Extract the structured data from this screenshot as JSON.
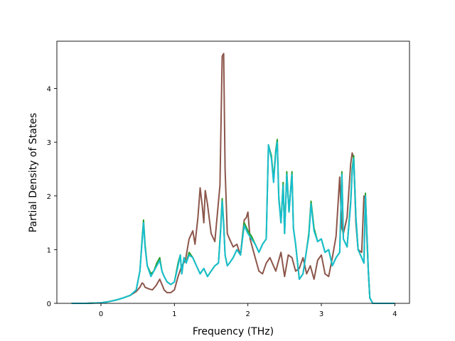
{
  "chart_data": {
    "type": "line",
    "title": "",
    "xlabel": "Frequency (THz)",
    "ylabel": "Partial Density of States",
    "xlim": [
      -0.6,
      4.2
    ],
    "ylim": [
      0,
      4.88
    ],
    "xticks": [
      0,
      1,
      2,
      3,
      4
    ],
    "xtick_labels": [
      "0",
      "1",
      "2",
      "3",
      "4"
    ],
    "yticks": [
      0,
      1,
      2,
      3,
      4
    ],
    "ytick_labels": [
      "0",
      "1",
      "2",
      "3",
      "4"
    ],
    "grid": false,
    "legend": "none",
    "series": [
      {
        "color": "#8c564b",
        "x": [
          -0.4,
          -0.2,
          0.0,
          0.1,
          0.2,
          0.3,
          0.4,
          0.48,
          0.53,
          0.56,
          0.58,
          0.6,
          0.65,
          0.7,
          0.75,
          0.8,
          0.83,
          0.86,
          0.9,
          0.95,
          1.0,
          1.05,
          1.1,
          1.15,
          1.2,
          1.25,
          1.28,
          1.32,
          1.35,
          1.38,
          1.4,
          1.42,
          1.45,
          1.5,
          1.55,
          1.58,
          1.62,
          1.65,
          1.67,
          1.69,
          1.72,
          1.75,
          1.8,
          1.85,
          1.9,
          1.95,
          1.98,
          2.0,
          2.03,
          2.08,
          2.15,
          2.2,
          2.25,
          2.3,
          2.38,
          2.45,
          2.5,
          2.55,
          2.6,
          2.65,
          2.7,
          2.75,
          2.8,
          2.85,
          2.9,
          2.95,
          3.0,
          3.05,
          3.1,
          3.15,
          3.2,
          3.25,
          3.28,
          3.3,
          3.35,
          3.4,
          3.42,
          3.44,
          3.47,
          3.5,
          3.55,
          3.58,
          3.6,
          3.62,
          3.64,
          3.66,
          3.7,
          3.8,
          4.0
        ],
        "y": [
          0.0,
          0.0,
          0.01,
          0.03,
          0.06,
          0.1,
          0.15,
          0.22,
          0.3,
          0.38,
          0.36,
          0.3,
          0.27,
          0.25,
          0.33,
          0.45,
          0.35,
          0.25,
          0.2,
          0.2,
          0.25,
          0.5,
          0.7,
          0.8,
          1.2,
          1.35,
          1.1,
          1.6,
          2.15,
          1.8,
          1.5,
          2.1,
          1.85,
          1.3,
          1.15,
          1.6,
          2.2,
          4.6,
          4.65,
          2.5,
          1.3,
          1.2,
          1.05,
          1.1,
          0.9,
          1.55,
          1.6,
          1.7,
          1.2,
          0.95,
          0.6,
          0.55,
          0.75,
          0.85,
          0.6,
          0.95,
          0.5,
          0.9,
          0.85,
          0.6,
          0.65,
          0.85,
          0.55,
          0.7,
          0.45,
          0.8,
          0.9,
          0.55,
          0.5,
          0.85,
          1.25,
          2.35,
          1.4,
          1.3,
          1.6,
          2.6,
          2.8,
          2.7,
          1.5,
          1.0,
          0.95,
          2.0,
          1.95,
          1.2,
          0.6,
          0.1,
          0.0,
          0.0,
          0.0
        ]
      },
      {
        "color": "#2ca02c",
        "x": [
          -0.4,
          -0.2,
          0.0,
          0.1,
          0.2,
          0.3,
          0.4,
          0.48,
          0.53,
          0.56,
          0.58,
          0.6,
          0.63,
          0.68,
          0.72,
          0.76,
          0.8,
          0.83,
          0.86,
          0.9,
          0.95,
          1.0,
          1.05,
          1.08,
          1.1,
          1.13,
          1.16,
          1.2,
          1.25,
          1.3,
          1.35,
          1.4,
          1.45,
          1.5,
          1.55,
          1.6,
          1.63,
          1.65,
          1.67,
          1.69,
          1.72,
          1.75,
          1.8,
          1.85,
          1.9,
          1.95,
          2.0,
          2.05,
          2.1,
          2.15,
          2.2,
          2.25,
          2.28,
          2.32,
          2.35,
          2.38,
          2.4,
          2.42,
          2.45,
          2.48,
          2.5,
          2.53,
          2.56,
          2.6,
          2.62,
          2.65,
          2.7,
          2.75,
          2.8,
          2.83,
          2.86,
          2.9,
          2.95,
          3.0,
          3.05,
          3.1,
          3.15,
          3.2,
          3.25,
          3.28,
          3.3,
          3.35,
          3.4,
          3.42,
          3.44,
          3.47,
          3.5,
          3.55,
          3.58,
          3.6,
          3.62,
          3.64,
          3.66,
          3.7,
          3.8,
          4.0
        ],
        "y": [
          0.0,
          0.0,
          0.01,
          0.03,
          0.06,
          0.1,
          0.15,
          0.25,
          0.6,
          1.2,
          1.55,
          1.1,
          0.7,
          0.55,
          0.6,
          0.75,
          0.85,
          0.6,
          0.5,
          0.4,
          0.35,
          0.4,
          0.75,
          0.9,
          0.55,
          0.85,
          0.75,
          0.95,
          0.85,
          0.7,
          0.55,
          0.65,
          0.5,
          0.6,
          0.7,
          0.75,
          1.4,
          1.95,
          1.5,
          0.9,
          0.7,
          0.75,
          0.85,
          1.0,
          0.9,
          1.5,
          1.35,
          1.25,
          1.1,
          0.95,
          1.1,
          1.2,
          2.95,
          2.75,
          2.3,
          2.85,
          3.05,
          2.0,
          1.5,
          2.25,
          1.3,
          2.45,
          1.7,
          2.45,
          1.4,
          1.1,
          0.45,
          0.55,
          1.0,
          1.3,
          1.9,
          1.4,
          1.15,
          1.2,
          0.95,
          1.0,
          0.7,
          0.85,
          0.95,
          2.45,
          1.2,
          1.05,
          1.9,
          2.5,
          2.75,
          1.6,
          1.0,
          0.85,
          0.75,
          2.05,
          1.3,
          0.6,
          0.1,
          0.0,
          0.0,
          0.0
        ]
      },
      {
        "color": "#17becf",
        "x": [
          -0.4,
          -0.2,
          0.0,
          0.1,
          0.2,
          0.3,
          0.4,
          0.48,
          0.53,
          0.56,
          0.58,
          0.6,
          0.63,
          0.68,
          0.72,
          0.76,
          0.8,
          0.83,
          0.86,
          0.9,
          0.95,
          1.0,
          1.05,
          1.08,
          1.1,
          1.13,
          1.16,
          1.2,
          1.25,
          1.3,
          1.35,
          1.4,
          1.45,
          1.5,
          1.55,
          1.6,
          1.63,
          1.65,
          1.67,
          1.69,
          1.72,
          1.75,
          1.8,
          1.85,
          1.9,
          1.95,
          2.0,
          2.05,
          2.1,
          2.15,
          2.2,
          2.25,
          2.28,
          2.32,
          2.35,
          2.38,
          2.4,
          2.42,
          2.45,
          2.48,
          2.5,
          2.53,
          2.56,
          2.6,
          2.62,
          2.65,
          2.7,
          2.75,
          2.8,
          2.83,
          2.86,
          2.9,
          2.95,
          3.0,
          3.05,
          3.1,
          3.15,
          3.2,
          3.25,
          3.28,
          3.3,
          3.35,
          3.4,
          3.42,
          3.44,
          3.47,
          3.5,
          3.55,
          3.58,
          3.6,
          3.62,
          3.64,
          3.66,
          3.7,
          3.8,
          4.0
        ],
        "y": [
          0.0,
          0.0,
          0.01,
          0.03,
          0.06,
          0.1,
          0.15,
          0.25,
          0.6,
          1.15,
          1.5,
          1.05,
          0.7,
          0.5,
          0.6,
          0.7,
          0.8,
          0.6,
          0.5,
          0.4,
          0.35,
          0.4,
          0.7,
          0.9,
          0.55,
          0.85,
          0.75,
          0.9,
          0.85,
          0.7,
          0.55,
          0.65,
          0.5,
          0.6,
          0.7,
          0.75,
          1.35,
          1.9,
          1.45,
          0.9,
          0.7,
          0.75,
          0.85,
          1.0,
          0.9,
          1.45,
          1.3,
          1.2,
          1.1,
          0.95,
          1.1,
          1.2,
          2.95,
          2.7,
          2.25,
          2.8,
          3.0,
          1.95,
          1.5,
          2.2,
          1.3,
          2.4,
          1.7,
          2.4,
          1.4,
          1.1,
          0.45,
          0.55,
          1.0,
          1.25,
          1.85,
          1.35,
          1.15,
          1.2,
          0.95,
          1.0,
          0.7,
          0.85,
          0.95,
          2.4,
          1.2,
          1.05,
          1.85,
          2.45,
          2.7,
          1.6,
          1.0,
          0.85,
          0.75,
          2.0,
          1.3,
          0.6,
          0.1,
          0.0,
          0.0,
          0.0
        ]
      }
    ]
  }
}
